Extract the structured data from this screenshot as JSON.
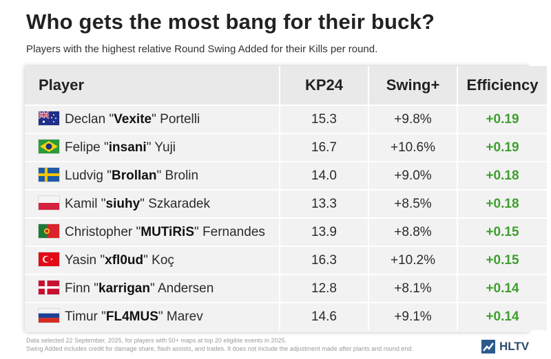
{
  "title": "Who gets the most bang for their buck?",
  "subtitle": "Players with the highest relative Round Swing Added for their Kills per round.",
  "columns": {
    "player": "Player",
    "kp24": "KP24",
    "swing": "Swing+",
    "efficiency": "Efficiency"
  },
  "rows": [
    {
      "first": "Declan ",
      "nick": "Vexite",
      "last": "Portelli",
      "country": "Australia",
      "kp24": "15.3",
      "swing": "+9.8%",
      "efficiency": "+0.19"
    },
    {
      "first": "Felipe",
      "nick": "insani",
      "last": "Yuji",
      "country": "Brazil",
      "kp24": "16.7",
      "swing": "+10.6%",
      "efficiency": "+0.19"
    },
    {
      "first": "Ludvig",
      "nick": "Brollan",
      "last": "Brolin",
      "country": "Sweden",
      "kp24": "14.0",
      "swing": "+9.0%",
      "efficiency": "+0.18"
    },
    {
      "first": "Kamil",
      "nick": "siuhy",
      "last": "Szkaradek",
      "country": "Poland",
      "kp24": "13.3",
      "swing": "+8.5%",
      "efficiency": "+0.18"
    },
    {
      "first": "Christopher",
      "nick": "MUTiRiS",
      "last": "Fernandes",
      "country": "Portugal",
      "kp24": "13.9",
      "swing": "+8.8%",
      "efficiency": "+0.15"
    },
    {
      "first": "Yasin",
      "nick": "xfl0ud",
      "last": "Koç",
      "country": "Turkey",
      "kp24": "16.3",
      "swing": "+10.2%",
      "efficiency": "+0.15"
    },
    {
      "first": "Finn",
      "nick": "karrigan",
      "last": "Andersen",
      "country": "Denmark",
      "kp24": "12.8",
      "swing": "+8.1%",
      "efficiency": "+0.14"
    },
    {
      "first": "Timur",
      "nick": "FL4MUS",
      "last": "Marev",
      "country": "Russia",
      "kp24": "14.6",
      "swing": "+9.1%",
      "efficiency": "+0.14"
    }
  ],
  "footer": {
    "line1": "Data selected 22 September, 2025, for players with 50+ maps at top 20 eligible events in 2025.",
    "line2": "Swing Added includes credit for damage share, flash assists, and trades. It does not include the adjustment made after plants and round end."
  },
  "logo": {
    "text": "HLTV"
  },
  "colors": {
    "efficiency": "#3f9e2f",
    "header_bg": "#e9e9e9",
    "row_bg": "#f2f2f2",
    "logo": "#2d5a8c"
  }
}
